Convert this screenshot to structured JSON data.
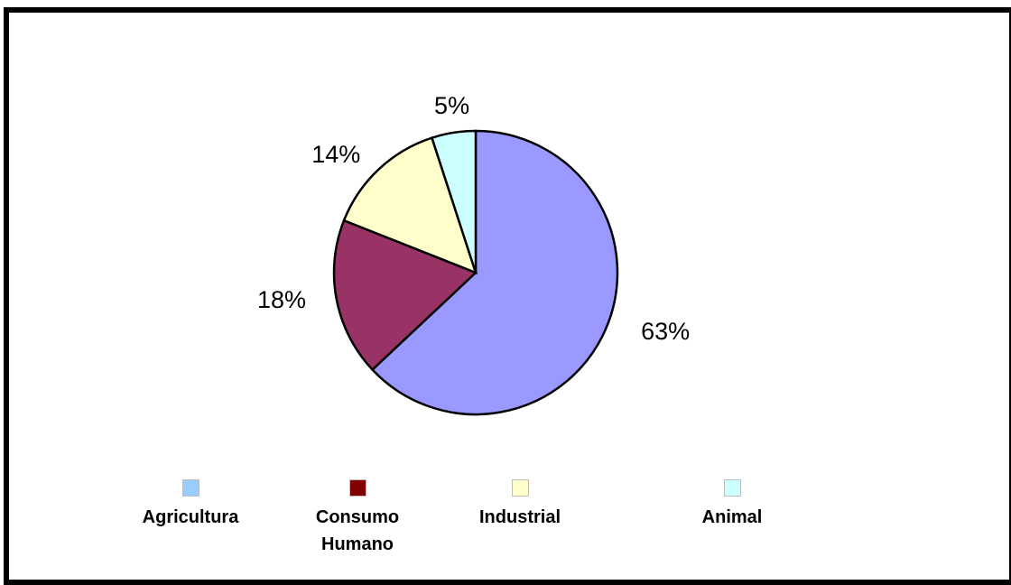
{
  "chart_data": {
    "type": "pie",
    "slices": [
      {
        "label": "Agricultura",
        "value": 63,
        "display": "63%",
        "color": "#9999ff"
      },
      {
        "label": "Consumo Humano",
        "value": 18,
        "display": "18%",
        "color": "#993366"
      },
      {
        "label": "Industrial",
        "value": 14,
        "display": "14%",
        "color": "#ffffcc"
      },
      {
        "label": "Animal",
        "value": 5,
        "display": "5%",
        "color": "#ccffff"
      }
    ],
    "legend": [
      {
        "label": "Agricultura",
        "color": "#99ccff"
      },
      {
        "label": "Consumo\nHumano",
        "color": "#800000"
      },
      {
        "label": "Industrial",
        "color": "#ffffcc"
      },
      {
        "label": "Animal",
        "color": "#ccffff"
      }
    ],
    "legend_position": "bottom",
    "slice_border_color": "#000000"
  }
}
